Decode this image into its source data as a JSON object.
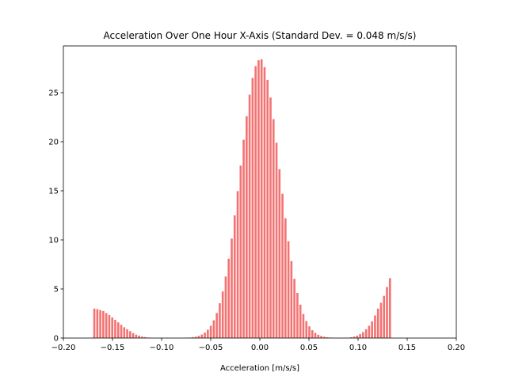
{
  "chart_data": {
    "type": "histogram",
    "title": "Acceleration Over One Hour X-Axis (Standard Dev. = 0.048 m/s/s)",
    "x_label": "Acceleration [m/s/s]",
    "color": "#f37373",
    "bins": [
      -0.17,
      -0.16696,
      -0.16392,
      -0.16088,
      -0.15784,
      -0.1548,
      -0.15176,
      -0.14872,
      -0.14568,
      -0.14264,
      -0.1396,
      -0.13656,
      -0.13352,
      -0.13048,
      -0.12744,
      -0.1244,
      -0.12136,
      -0.11832,
      -0.11528,
      -0.11224,
      -0.1092,
      -0.10616,
      -0.10312,
      -0.10008,
      -0.09704,
      -0.094,
      -0.09096,
      -0.08792,
      -0.08488,
      -0.08184,
      -0.0788,
      -0.07576,
      -0.07272,
      -0.06968,
      -0.06664,
      -0.0636,
      -0.06056,
      -0.05752,
      -0.05448,
      -0.05144,
      -0.0484,
      -0.04536,
      -0.04232,
      -0.03928,
      -0.03624,
      -0.0332,
      -0.03016,
      -0.02712,
      -0.02408,
      -0.02104,
      -0.018,
      -0.01496,
      -0.01192,
      -0.00888,
      -0.00584,
      -0.0028,
      0.00024,
      0.00328,
      0.00632,
      0.00936,
      0.0124,
      0.01544,
      0.01848,
      0.02152,
      0.02456,
      0.0276,
      0.03064,
      0.03368,
      0.03672,
      0.03976,
      0.0428,
      0.04584,
      0.04888,
      0.05192,
      0.05496,
      0.058,
      0.06104,
      0.06408,
      0.06712,
      0.07016,
      0.0732,
      0.07624,
      0.07928,
      0.08232,
      0.08536,
      0.0884,
      0.09144,
      0.09448,
      0.09752,
      0.10056,
      0.1036,
      0.10664,
      0.10968,
      0.11272,
      0.11576,
      0.1188,
      0.12184,
      0.12488,
      0.12792,
      0.13096,
      0.134
    ],
    "counts": [
      3.0,
      2.95,
      2.85,
      2.75,
      2.55,
      2.35,
      2.1,
      1.85,
      1.6,
      1.35,
      1.1,
      0.9,
      0.7,
      0.5,
      0.35,
      0.25,
      0.15,
      0.1,
      0.05,
      0.02,
      0,
      0,
      0,
      0,
      0,
      0,
      0,
      0,
      0,
      0,
      0.02,
      0.03,
      0.05,
      0.09,
      0.14,
      0.23,
      0.36,
      0.56,
      0.85,
      1.25,
      1.81,
      2.55,
      3.55,
      4.75,
      6.27,
      8.08,
      10.13,
      12.5,
      14.97,
      17.57,
      20.2,
      22.6,
      24.8,
      26.5,
      27.7,
      28.3,
      28.4,
      27.6,
      26.3,
      24.5,
      22.3,
      19.9,
      17.2,
      14.7,
      12.2,
      9.86,
      7.84,
      6.03,
      4.6,
      3.4,
      2.45,
      1.73,
      1.19,
      0.8,
      0.53,
      0.34,
      0.21,
      0.13,
      0.08,
      0.05,
      0.03,
      0.02,
      0.01,
      0.01,
      0.02,
      0.04,
      0.08,
      0.15,
      0.25,
      0.4,
      0.6,
      0.9,
      1.25,
      1.7,
      2.3,
      3.0,
      3.6,
      4.3,
      5.2,
      6.1
    ],
    "xlim": [
      -0.2,
      0.2
    ],
    "xticks": [
      {
        "value": -0.2,
        "label": "−0.20"
      },
      {
        "value": -0.15,
        "label": "−0.15"
      },
      {
        "value": -0.1,
        "label": "−0.10"
      },
      {
        "value": -0.05,
        "label": "−0.05"
      },
      {
        "value": 0,
        "label": "0.00"
      },
      {
        "value": 0.05,
        "label": "0.05"
      },
      {
        "value": 0.1,
        "label": "0.10"
      },
      {
        "value": 0.15,
        "label": "0.15"
      },
      {
        "value": 0.2,
        "label": "0.20"
      }
    ],
    "ylim": [
      0,
      29.76
    ],
    "yticks": [
      0,
      5,
      10,
      15,
      20,
      25
    ],
    "rwidth": 0.7
  }
}
